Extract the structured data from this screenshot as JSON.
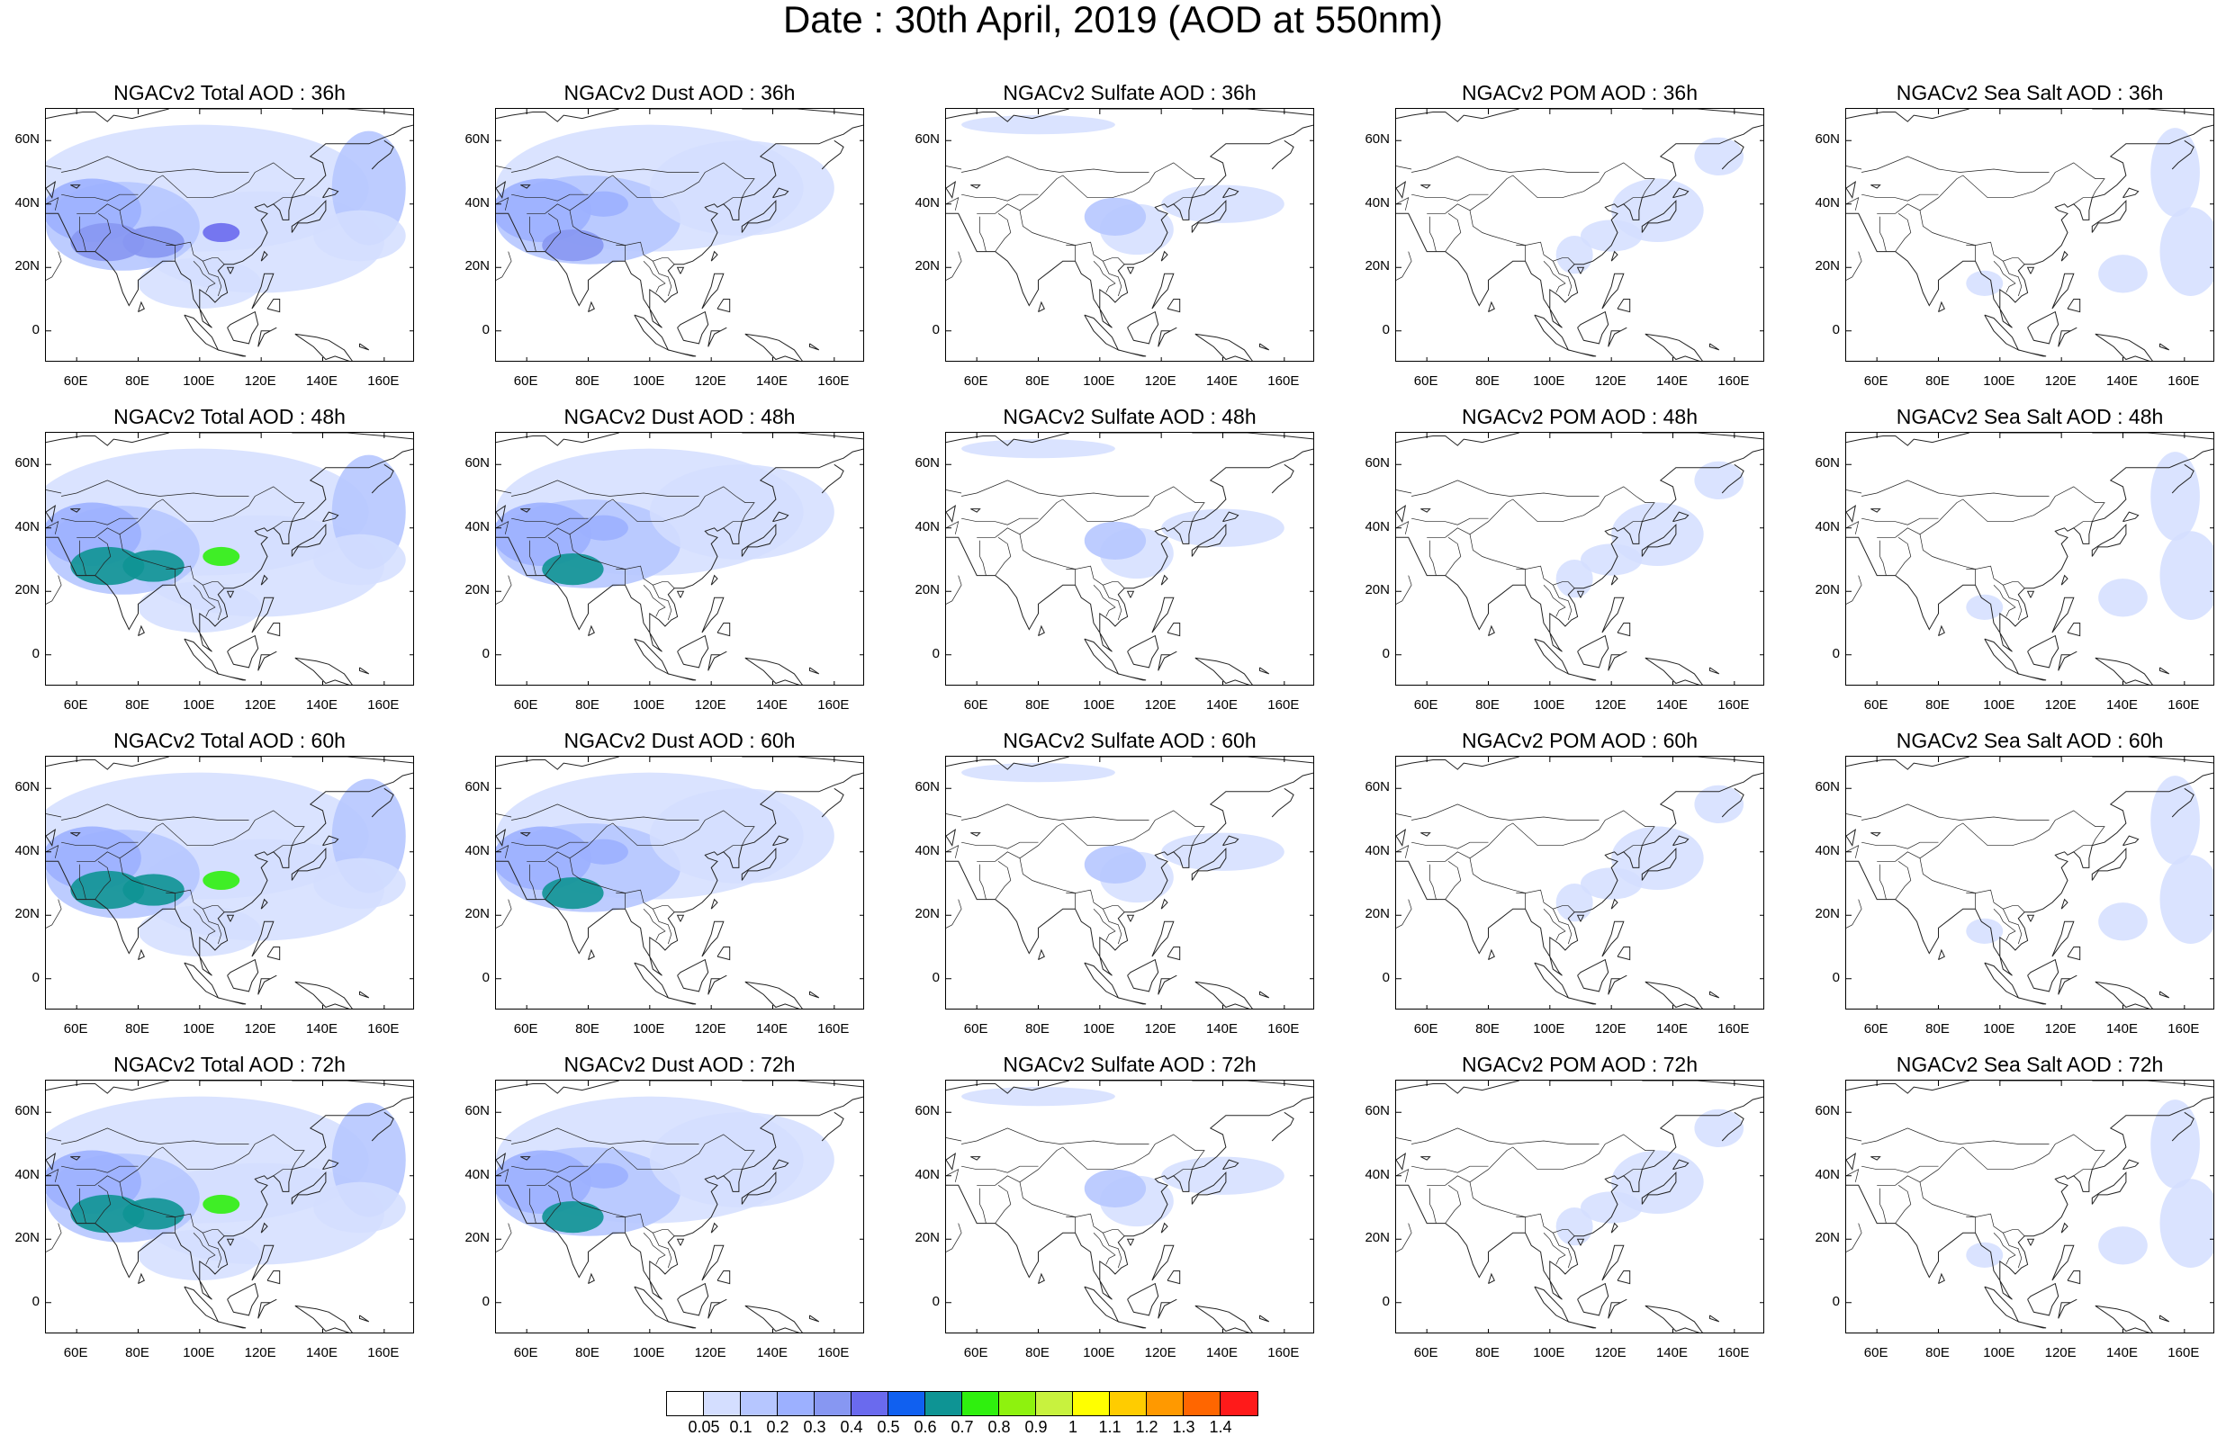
{
  "title": "Date : 30th April, 2019 (AOD at 550nm)",
  "axes": {
    "lat_labels": [
      "60N",
      "40N",
      "20N",
      "0"
    ],
    "lon_labels": [
      "60E",
      "80E",
      "100E",
      "120E",
      "140E",
      "160E"
    ]
  },
  "panels": [
    {
      "title": "NGACv2 Total AOD : 36h",
      "species": "total",
      "hour": 36
    },
    {
      "title": "NGACv2 Dust AOD : 36h",
      "species": "dust",
      "hour": 36
    },
    {
      "title": "NGACv2 Sulfate AOD : 36h",
      "species": "sulfate",
      "hour": 36
    },
    {
      "title": "NGACv2 POM AOD : 36h",
      "species": "pom",
      "hour": 36
    },
    {
      "title": "NGACv2 Sea Salt AOD : 36h",
      "species": "seasalt",
      "hour": 36
    },
    {
      "title": "NGACv2 Total AOD : 48h",
      "species": "total",
      "hour": 48
    },
    {
      "title": "NGACv2 Dust AOD : 48h",
      "species": "dust",
      "hour": 48
    },
    {
      "title": "NGACv2 Sulfate AOD : 48h",
      "species": "sulfate",
      "hour": 48
    },
    {
      "title": "NGACv2 POM AOD : 48h",
      "species": "pom",
      "hour": 48
    },
    {
      "title": "NGACv2 Sea Salt AOD : 48h",
      "species": "seasalt",
      "hour": 48
    },
    {
      "title": "NGACv2 Total AOD : 60h",
      "species": "total",
      "hour": 60
    },
    {
      "title": "NGACv2 Dust AOD : 60h",
      "species": "dust",
      "hour": 60
    },
    {
      "title": "NGACv2 Sulfate AOD : 60h",
      "species": "sulfate",
      "hour": 60
    },
    {
      "title": "NGACv2 POM AOD : 60h",
      "species": "pom",
      "hour": 60
    },
    {
      "title": "NGACv2 Sea Salt AOD : 60h",
      "species": "seasalt",
      "hour": 60
    },
    {
      "title": "NGACv2 Total AOD : 72h",
      "species": "total",
      "hour": 72
    },
    {
      "title": "NGACv2 Dust AOD : 72h",
      "species": "dust",
      "hour": 72
    },
    {
      "title": "NGACv2 Sulfate AOD : 72h",
      "species": "sulfate",
      "hour": 72
    },
    {
      "title": "NGACv2 POM AOD : 72h",
      "species": "pom",
      "hour": 72
    },
    {
      "title": "NGACv2 Sea Salt  AOD : 72h",
      "species": "seasalt",
      "hour": 72
    }
  ],
  "colorbar": {
    "labels": [
      "0.05",
      "0.1",
      "0.2",
      "0.3",
      "0.4",
      "0.5",
      "0.6",
      "0.7",
      "0.8",
      "0.9",
      "1",
      "1.1",
      "1.2",
      "1.3",
      "1.4"
    ],
    "colors": [
      "#ffffff",
      "#d4deff",
      "#b6c6ff",
      "#9cb0ff",
      "#8797f2",
      "#6a6aee",
      "#1060f0",
      "#0e9494",
      "#2ff00e",
      "#8ef20e",
      "#c8f23e",
      "#ffff00",
      "#ffcc00",
      "#ff9900",
      "#ff6600",
      "#ff1a1a"
    ]
  }
}
